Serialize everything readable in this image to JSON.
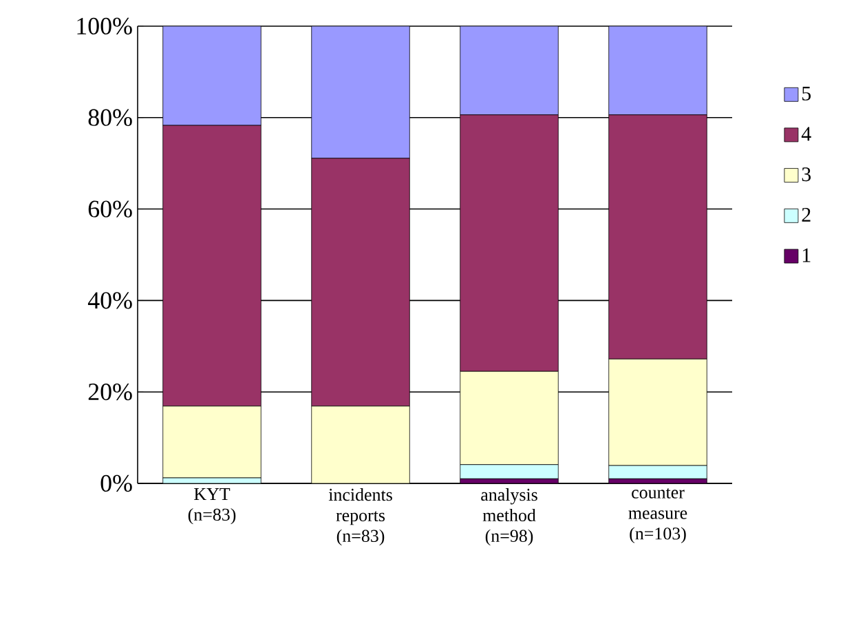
{
  "chart_data": {
    "type": "bar",
    "stacked": true,
    "categories": [
      "KYT (n=83)",
      "incidents reports (n=83)",
      "analysis method (n=98)",
      "counter measure (n=103)"
    ],
    "series": [
      {
        "name": "1",
        "color": "#660066",
        "values": [
          0,
          0,
          1.0,
          1.0
        ]
      },
      {
        "name": "2",
        "color": "#ccffff",
        "values": [
          1.2,
          0,
          3.1,
          2.9
        ]
      },
      {
        "name": "3",
        "color": "#ffffcc",
        "values": [
          15.7,
          16.9,
          20.4,
          23.3
        ]
      },
      {
        "name": "4",
        "color": "#993366",
        "values": [
          61.4,
          54.2,
          56.1,
          53.4
        ]
      },
      {
        "name": "5",
        "color": "#9999ff",
        "values": [
          21.7,
          28.9,
          19.4,
          19.4
        ]
      }
    ],
    "ylim": [
      0,
      100
    ],
    "yticks": [
      {
        "value": 0,
        "label": "0%"
      },
      {
        "value": 20,
        "label": "20%"
      },
      {
        "value": 40,
        "label": "40%"
      },
      {
        "value": 60,
        "label": "60%"
      },
      {
        "value": 80,
        "label": "80%"
      },
      {
        "value": 100,
        "label": "100%"
      }
    ],
    "grid": "y",
    "legend": "right"
  }
}
